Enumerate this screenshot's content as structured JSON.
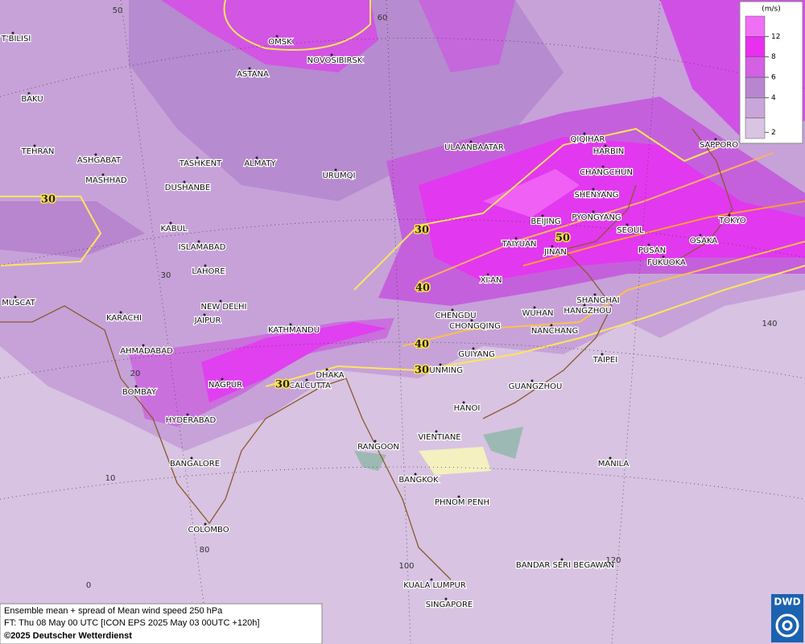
{
  "cities": [
    "OMSK",
    "NOVOSIBIRSK",
    "ASTANA",
    "T'BILISI",
    "BAKU",
    "TEHRAN",
    "ASHGABAT",
    "MASHHAD",
    "TASHKENT",
    "ALMATY",
    "DUSHANBE",
    "URUMQI",
    "ULAANBAATAR",
    "QIQIHAR",
    "HARBIN",
    "SAPPORO",
    "CHANGCHUN",
    "SHENYANG",
    "BEIJING",
    "PYONGYANG",
    "TOKYO",
    "SEOUL",
    "TAIYUAN",
    "JINAN",
    "PUSAN",
    "OSAKA",
    "FUKUOKA",
    "KABUL",
    "ISLAMABAD",
    "LAHORE",
    "XI'AN",
    "NEW DELHI",
    "MUSCAT",
    "KARACHI",
    "JAIPUR",
    "CHENGDU",
    "SHANGHAI",
    "WUHAN",
    "HANGZHOU",
    "KATHMANDU",
    "CHONGQING",
    "NANCHANG",
    "AHMADABAD",
    "GUIYANG",
    "TAIPEI",
    "DHAKA",
    "KUNMING",
    "CALCUTTA",
    "NAGPUR",
    "GUANGZHOU",
    "BOMBAY",
    "HYDERABAD",
    "HANOI",
    "VIENTIANE",
    "RANGOON",
    "MANILA",
    "BANGALORE",
    "BANGKOK",
    "PHNOM PENH",
    "COLOMBO",
    "BANDAR SERI BEGAWAN",
    "KUALA LUMPUR",
    "SINGAPORE"
  ],
  "grid_labels": [
    50,
    60,
    30,
    20,
    10,
    0,
    80,
    100,
    120,
    140
  ],
  "contour_labels": [
    30,
    30,
    40,
    50,
    40,
    30,
    30
  ],
  "legend": {
    "unit": "(m/s)",
    "ticks": [
      2,
      4,
      6,
      8,
      12
    ],
    "colors": [
      "#d9c4e3",
      "#c9a6da",
      "#b886d0",
      "#d460e4",
      "#e830ee",
      "#f070f5"
    ]
  },
  "footer": [
    "Ensemble mean + spread of Mean wind speed 250 hPa",
    "FT: Thu 08 May 00 UTC [ICON EPS 2025 May 03 00UTC +120h]",
    "©2025 Deutscher Wetterdienst"
  ],
  "logo": "DWD"
}
